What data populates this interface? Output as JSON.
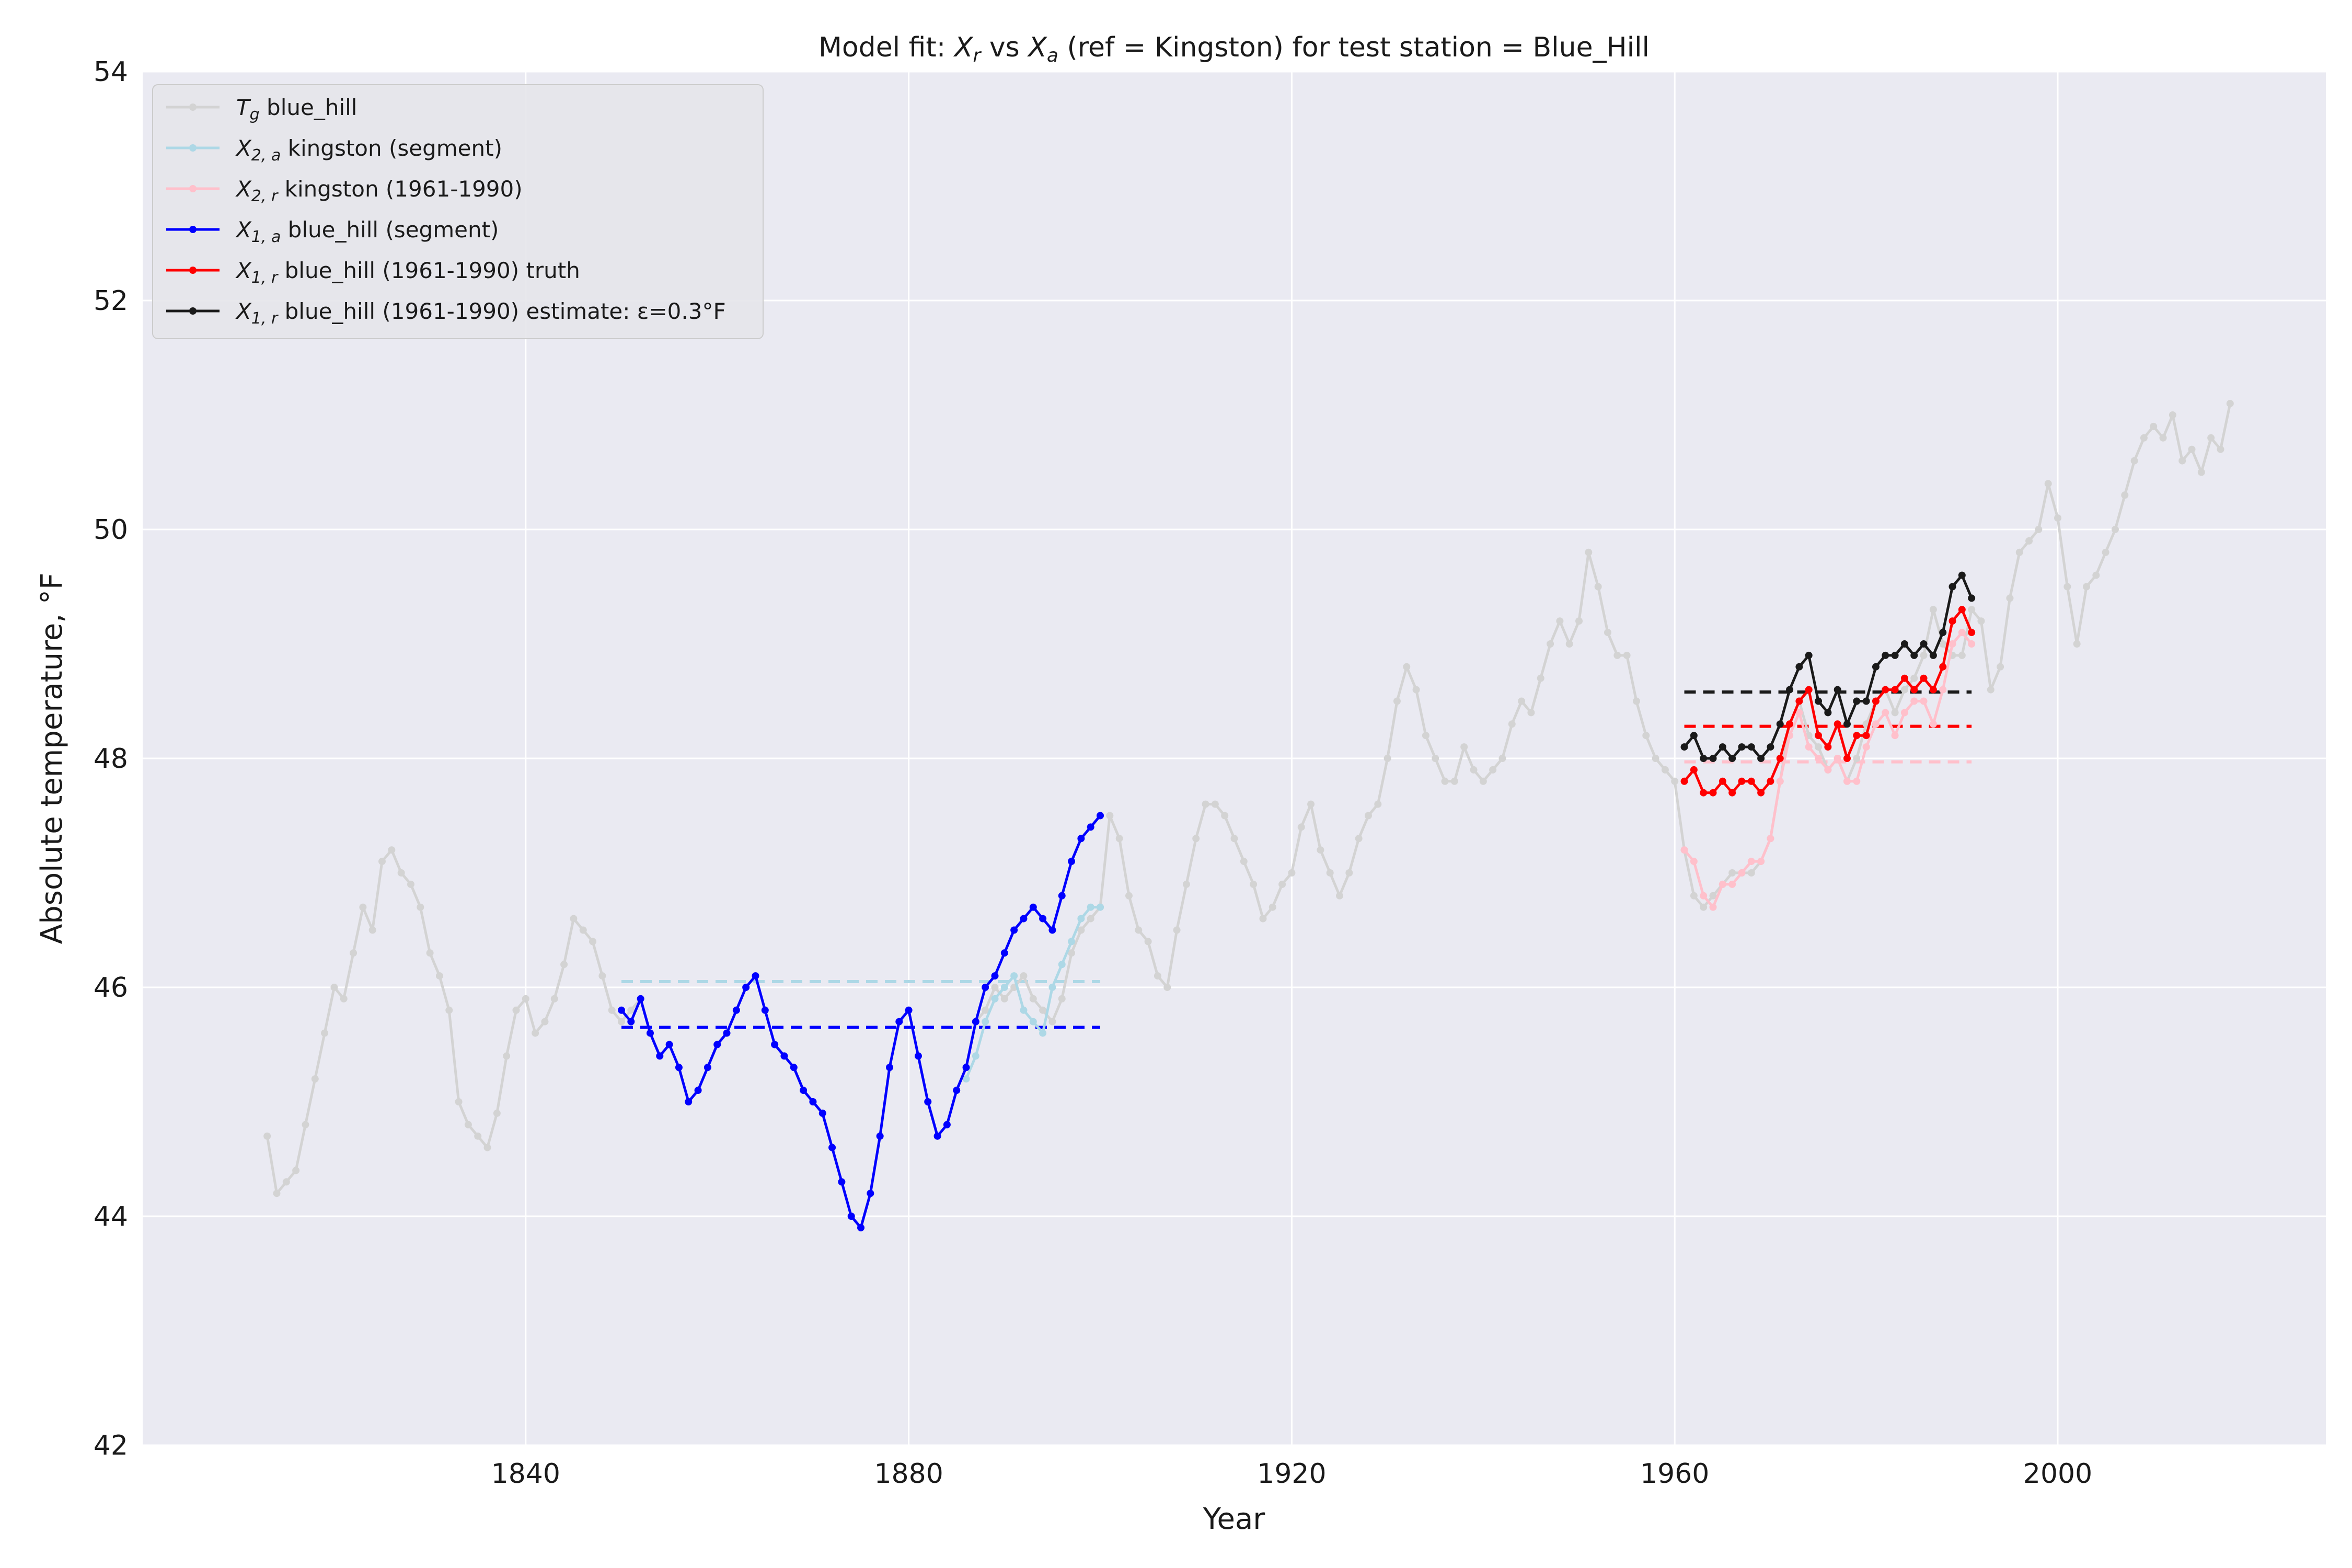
{
  "chart_data": {
    "type": "line",
    "title": "Model fit: X_r vs X_a (ref = Kingston) for test station = Blue_Hill",
    "title_parts": {
      "prefix": "Model fit: ",
      "x_r_base": "X",
      "x_r_sub": "r",
      "vs": " vs ",
      "x_a_base": "X",
      "x_a_sub": "a",
      "suffix": " (ref = Kingston) for test station = Blue_Hill"
    },
    "xlabel": "Year",
    "ylabel": "Absolute temperature, °F",
    "xlim": [
      1800,
      2028
    ],
    "ylim": [
      42,
      54
    ],
    "xticks": [
      1840,
      1880,
      1920,
      1960,
      2000
    ],
    "yticks": [
      42,
      44,
      46,
      48,
      50,
      52,
      54
    ],
    "grid": true,
    "legend_placement": "top-left",
    "background_color": "#eaeaf2",
    "series": [
      {
        "name": "T_g blue_hill",
        "legend_base": "T",
        "legend_sub": "g",
        "legend_rest": " blue_hill",
        "color": "#d3d3d3",
        "x": [
          1813,
          1814,
          1815,
          1816,
          1817,
          1818,
          1819,
          1820,
          1821,
          1822,
          1823,
          1824,
          1825,
          1826,
          1827,
          1828,
          1829,
          1830,
          1831,
          1832,
          1833,
          1834,
          1835,
          1836,
          1837,
          1838,
          1839,
          1840,
          1841,
          1842,
          1843,
          1844,
          1845,
          1846,
          1847,
          1848,
          1849,
          1850,
          1851,
          1852,
          1853,
          1854,
          1855,
          1856,
          1857,
          1858,
          1859,
          1860,
          1861,
          1862,
          1863,
          1864,
          1865,
          1866,
          1867,
          1868,
          1869,
          1870,
          1871,
          1872,
          1873,
          1874,
          1875,
          1876,
          1877,
          1878,
          1879,
          1880,
          1881,
          1882,
          1883,
          1884,
          1885,
          1886,
          1887,
          1888,
          1889,
          1890,
          1891,
          1892,
          1893,
          1894,
          1895,
          1896,
          1897,
          1898,
          1899,
          1900,
          1901,
          1902,
          1903,
          1904,
          1905,
          1906,
          1907,
          1908,
          1909,
          1910,
          1911,
          1912,
          1913,
          1914,
          1915,
          1916,
          1917,
          1918,
          1919,
          1920,
          1921,
          1922,
          1923,
          1924,
          1925,
          1926,
          1927,
          1928,
          1929,
          1930,
          1931,
          1932,
          1933,
          1934,
          1935,
          1936,
          1937,
          1938,
          1939,
          1940,
          1941,
          1942,
          1943,
          1944,
          1945,
          1946,
          1947,
          1948,
          1949,
          1950,
          1951,
          1952,
          1953,
          1954,
          1955,
          1956,
          1957,
          1958,
          1959,
          1960,
          1961,
          1962,
          1963,
          1964,
          1965,
          1966,
          1967,
          1968,
          1969,
          1970,
          1971,
          1972,
          1973,
          1974,
          1975,
          1976,
          1977,
          1978,
          1979,
          1980,
          1981,
          1982,
          1983,
          1984,
          1985,
          1986,
          1987,
          1988,
          1989,
          1990,
          1991,
          1992,
          1993,
          1994,
          1995,
          1996,
          1997,
          1998,
          1999,
          2000,
          2001,
          2002,
          2003,
          2004,
          2005,
          2006,
          2007,
          2008,
          2009,
          2010,
          2011,
          2012,
          2013,
          2014,
          2015,
          2016,
          2017,
          2018
        ],
        "y": [
          44.7,
          44.2,
          44.3,
          44.4,
          44.8,
          45.2,
          45.6,
          46.0,
          45.9,
          46.3,
          46.7,
          46.5,
          47.1,
          47.2,
          47.0,
          46.9,
          46.7,
          46.3,
          46.1,
          45.8,
          45.0,
          44.8,
          44.7,
          44.6,
          44.9,
          45.4,
          45.8,
          45.9,
          45.6,
          45.7,
          45.9,
          46.2,
          46.6,
          46.5,
          46.4,
          46.1,
          45.8,
          45.7,
          45.8,
          45.9,
          45.6,
          45.4,
          45.5,
          45.3,
          45.0,
          45.1,
          45.3,
          45.5,
          45.6,
          45.8,
          46.0,
          46.1,
          45.8,
          45.5,
          45.4,
          45.3,
          45.1,
          45.0,
          44.9,
          44.6,
          44.3,
          44.0,
          43.9,
          44.2,
          44.7,
          45.3,
          45.7,
          45.8,
          45.4,
          45.0,
          44.7,
          44.8,
          45.1,
          45.3,
          45.7,
          45.8,
          46.0,
          45.9,
          46.0,
          46.1,
          45.9,
          45.8,
          45.7,
          45.9,
          46.3,
          46.5,
          46.6,
          46.7,
          47.5,
          47.3,
          46.8,
          46.5,
          46.4,
          46.1,
          46.0,
          46.5,
          46.9,
          47.3,
          47.6,
          47.6,
          47.5,
          47.3,
          47.1,
          46.9,
          46.6,
          46.7,
          46.9,
          47.0,
          47.4,
          47.6,
          47.2,
          47.0,
          46.8,
          47.0,
          47.3,
          47.5,
          47.6,
          48.0,
          48.5,
          48.8,
          48.6,
          48.2,
          48.0,
          47.8,
          47.8,
          48.1,
          47.9,
          47.8,
          47.9,
          48.0,
          48.3,
          48.5,
          48.4,
          48.7,
          49.0,
          49.2,
          49.0,
          49.2,
          49.8,
          49.5,
          49.1,
          48.9,
          48.9,
          48.5,
          48.2,
          48.0,
          47.9,
          47.8,
          47.2,
          46.8,
          46.7,
          46.8,
          46.9,
          47.0,
          47.0,
          47.0,
          47.1,
          47.3,
          47.8,
          48.3,
          48.5,
          48.2,
          48.1,
          47.9,
          48.0,
          47.8,
          48.0,
          48.3,
          48.5,
          48.6,
          48.4,
          48.6,
          48.7,
          48.9,
          49.3,
          49.0,
          48.9,
          48.9,
          49.3,
          49.2,
          48.6,
          48.8,
          49.4,
          49.8,
          49.9,
          50.0,
          50.4,
          50.1,
          49.5,
          49.0,
          49.5,
          49.6,
          49.8,
          50.0,
          50.3,
          50.6,
          50.8,
          50.9,
          50.8,
          51.0,
          50.6,
          50.7,
          50.5,
          50.8,
          50.7,
          51.1
        ]
      },
      {
        "name": "X_{2,a} kingston (segment)",
        "legend_base": "X",
        "legend_sub": "2, a",
        "legend_rest": " kingston (segment)",
        "color": "#add8e6",
        "x": [
          1886,
          1887,
          1888,
          1889,
          1890,
          1891,
          1892,
          1893,
          1894,
          1895,
          1896,
          1897,
          1898,
          1899,
          1900
        ],
        "y": [
          45.2,
          45.4,
          45.7,
          45.9,
          46.0,
          46.1,
          45.8,
          45.7,
          45.6,
          46.0,
          46.2,
          46.4,
          46.6,
          46.7,
          46.7
        ],
        "mean": 46.05,
        "mean_xlim": [
          1850,
          1900
        ]
      },
      {
        "name": "X_{2,r} kingston (1961-1990)",
        "legend_base": "X",
        "legend_sub": "2, r",
        "legend_rest": " kingston (1961-1990)",
        "color": "#ffc0cb",
        "x": [
          1961,
          1962,
          1963,
          1964,
          1965,
          1966,
          1967,
          1968,
          1969,
          1970,
          1971,
          1972,
          1973,
          1974,
          1975,
          1976,
          1977,
          1978,
          1979,
          1980,
          1981,
          1982,
          1983,
          1984,
          1985,
          1986,
          1987,
          1988,
          1989,
          1990,
          1991
        ],
        "y": [
          47.2,
          47.1,
          46.8,
          46.7,
          46.9,
          46.9,
          47.0,
          47.1,
          47.1,
          47.3,
          47.8,
          48.2,
          48.4,
          48.1,
          48.0,
          47.9,
          48.0,
          47.8,
          47.8,
          48.1,
          48.3,
          48.4,
          48.2,
          48.4,
          48.5,
          48.5,
          48.3,
          48.6,
          49.0,
          49.1,
          49.0
        ],
        "mean": 47.97,
        "mean_xlim": [
          1961,
          1991
        ]
      },
      {
        "name": "X_{1,a} blue_hill (segment)",
        "legend_base": "X",
        "legend_sub": "1, a",
        "legend_rest": " blue_hill (segment)",
        "color": "#0000ff",
        "x": [
          1850,
          1851,
          1852,
          1853,
          1854,
          1855,
          1856,
          1857,
          1858,
          1859,
          1860,
          1861,
          1862,
          1863,
          1864,
          1865,
          1866,
          1867,
          1868,
          1869,
          1870,
          1871,
          1872,
          1873,
          1874,
          1875,
          1876,
          1877,
          1878,
          1879,
          1880,
          1881,
          1882,
          1883,
          1884,
          1885,
          1886,
          1887,
          1888,
          1889,
          1890,
          1891,
          1892,
          1893,
          1894,
          1895,
          1896,
          1897,
          1898,
          1899,
          1900
        ],
        "y": [
          45.8,
          45.7,
          45.9,
          45.6,
          45.4,
          45.5,
          45.3,
          45.0,
          45.1,
          45.3,
          45.5,
          45.6,
          45.8,
          46.0,
          46.1,
          45.8,
          45.5,
          45.4,
          45.3,
          45.1,
          45.0,
          44.9,
          44.6,
          44.3,
          44.0,
          43.9,
          44.2,
          44.7,
          45.3,
          45.7,
          45.8,
          45.4,
          45.0,
          44.7,
          44.8,
          45.1,
          45.3,
          45.7,
          46.0,
          46.1,
          46.3,
          46.5,
          46.6,
          46.7,
          46.6,
          46.5,
          46.8,
          47.1,
          47.3,
          47.4,
          47.5
        ],
        "mean": 45.65,
        "mean_xlim": [
          1850,
          1900
        ]
      },
      {
        "name": "X_{1,r} blue_hill (1961-1990) truth",
        "legend_base": "X",
        "legend_sub": "1, r",
        "legend_rest": " blue_hill (1961-1990) truth",
        "color": "#ff0000",
        "x": [
          1961,
          1962,
          1963,
          1964,
          1965,
          1966,
          1967,
          1968,
          1969,
          1970,
          1971,
          1972,
          1973,
          1974,
          1975,
          1976,
          1977,
          1978,
          1979,
          1980,
          1981,
          1982,
          1983,
          1984,
          1985,
          1986,
          1987,
          1988,
          1989,
          1990,
          1991
        ],
        "y": [
          47.8,
          47.9,
          47.7,
          47.7,
          47.8,
          47.7,
          47.8,
          47.8,
          47.7,
          47.8,
          48.0,
          48.3,
          48.5,
          48.6,
          48.2,
          48.1,
          48.3,
          48.0,
          48.2,
          48.2,
          48.5,
          48.6,
          48.6,
          48.7,
          48.6,
          48.7,
          48.6,
          48.8,
          49.2,
          49.3,
          49.1
        ],
        "mean": 48.28,
        "mean_xlim": [
          1961,
          1991
        ]
      },
      {
        "name": "X_{1,r} blue_hill (1961-1990) estimate: ε=0.3°F",
        "legend_base": "X",
        "legend_sub": "1, r",
        "legend_rest": " blue_hill (1961-1990) estimate: ε=0.3°F",
        "color": "#1a1a1a",
        "x": [
          1961,
          1962,
          1963,
          1964,
          1965,
          1966,
          1967,
          1968,
          1969,
          1970,
          1971,
          1972,
          1973,
          1974,
          1975,
          1976,
          1977,
          1978,
          1979,
          1980,
          1981,
          1982,
          1983,
          1984,
          1985,
          1986,
          1987,
          1988,
          1989,
          1990,
          1991
        ],
        "y": [
          48.1,
          48.2,
          48.0,
          48.0,
          48.1,
          48.0,
          48.1,
          48.1,
          48.0,
          48.1,
          48.3,
          48.6,
          48.8,
          48.9,
          48.5,
          48.4,
          48.6,
          48.3,
          48.5,
          48.5,
          48.8,
          48.9,
          48.9,
          49.0,
          48.9,
          49.0,
          48.9,
          49.1,
          49.5,
          49.6,
          49.4
        ],
        "mean": 48.58,
        "mean_xlim": [
          1961,
          1991
        ]
      }
    ]
  }
}
